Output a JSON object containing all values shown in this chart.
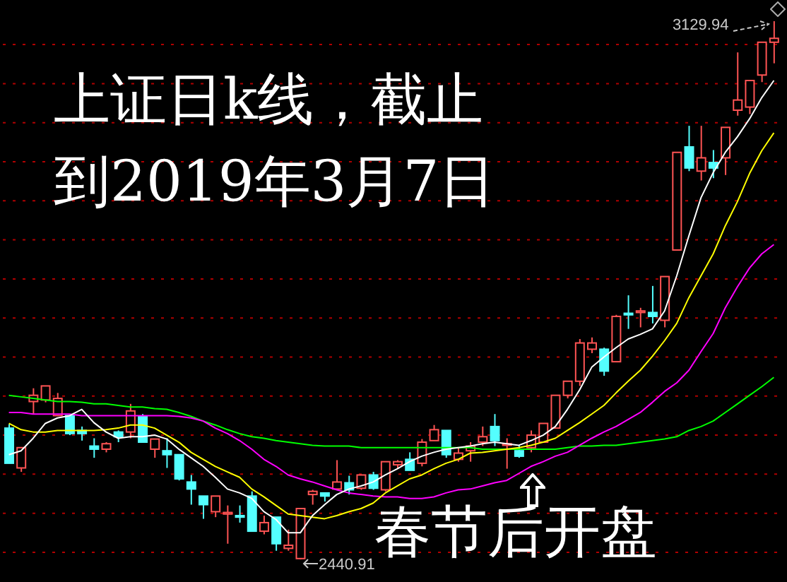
{
  "chart_data": {
    "type": "candlestick",
    "title": "上证日k线，截止到2019年3月7日",
    "annotations": [
      "3129.94",
      "2440.91",
      "春节后开盘"
    ],
    "categories": [
      null,
      null,
      null,
      null,
      null,
      null,
      null,
      null,
      null,
      null,
      null,
      null,
      null,
      null,
      null,
      null,
      null,
      null,
      null,
      null,
      null,
      null,
      null,
      null,
      null,
      null,
      null,
      null,
      null,
      null,
      null,
      null,
      null,
      null,
      null,
      null,
      null,
      null,
      null,
      null,
      null,
      null,
      null,
      null,
      null,
      null,
      null,
      null,
      null,
      null,
      null,
      null,
      null,
      null,
      null,
      null,
      null,
      null,
      null,
      null,
      null,
      null,
      null,
      null
    ],
    "ohlc": [
      [
        2609,
        2614,
        2564,
        2564
      ],
      [
        2558,
        2584,
        2553,
        2584
      ],
      [
        2643,
        2660,
        2627,
        2651
      ],
      [
        2645,
        2663,
        2642,
        2663
      ],
      [
        2625,
        2654,
        2625,
        2647
      ],
      [
        2625,
        2625,
        2600,
        2602
      ],
      [
        2606,
        2611,
        2593,
        2602
      ],
      [
        2586,
        2596,
        2571,
        2582
      ],
      [
        2582,
        2591,
        2578,
        2589
      ],
      [
        2604,
        2606,
        2591,
        2598
      ],
      [
        2604,
        2640,
        2596,
        2631
      ],
      [
        2624,
        2627,
        2591,
        2591
      ],
      [
        2582,
        2595,
        2571,
        2595
      ],
      [
        2580,
        2596,
        2558,
        2575
      ],
      [
        2575,
        2575,
        2542,
        2544
      ],
      [
        2540,
        2549,
        2511,
        2531
      ],
      [
        2522,
        2522,
        2493,
        2511
      ],
      [
        2502,
        2522,
        2495,
        2522
      ],
      [
        2499,
        2510,
        2461,
        2501
      ],
      [
        2497,
        2510,
        2488,
        2495
      ],
      [
        2522,
        2528,
        2477,
        2477
      ],
      [
        2477,
        2497,
        2473,
        2488
      ],
      [
        2495,
        2495,
        2452,
        2461
      ],
      [
        2455,
        2479,
        2452,
        2459
      ],
      [
        2442,
        2506,
        2440.91,
        2506
      ],
      [
        2524,
        2530,
        2511,
        2528
      ],
      [
        2526,
        2526,
        2515,
        2522
      ],
      [
        2531,
        2568,
        2530,
        2540
      ],
      [
        2539,
        2548,
        2524,
        2530
      ],
      [
        2532,
        2549,
        2530,
        2549
      ],
      [
        2549,
        2553,
        2530,
        2532
      ],
      [
        2530,
        2566,
        2528,
        2566
      ],
      [
        2562,
        2568,
        2557,
        2566
      ],
      [
        2569,
        2578,
        2555,
        2555
      ],
      [
        2564,
        2595,
        2560,
        2591
      ],
      [
        2593,
        2613,
        2593,
        2607
      ],
      [
        2606,
        2606,
        2571,
        2575
      ],
      [
        2569,
        2584,
        2566,
        2577
      ],
      [
        2580,
        2591,
        2566,
        2586
      ],
      [
        2591,
        2611,
        2586,
        2598
      ],
      [
        2611,
        2627,
        2586,
        2593
      ],
      [
        2587,
        2596,
        2557,
        2589
      ],
      [
        2580,
        2587,
        2571,
        2573
      ],
      [
        2584,
        2606,
        2578,
        2600
      ],
      [
        2591,
        2615,
        2591,
        2615
      ],
      [
        2609,
        2651,
        2609,
        2651
      ],
      [
        2651,
        2669,
        2647,
        2669
      ],
      [
        2669,
        2723,
        2663,
        2718
      ],
      [
        2710,
        2725,
        2705,
        2718
      ],
      [
        2710,
        2712,
        2676,
        2682
      ],
      [
        2694,
        2754,
        2694,
        2752
      ],
      [
        2756,
        2779,
        2736,
        2754
      ],
      [
        2757,
        2763,
        2738,
        2759
      ],
      [
        2757,
        2791,
        2743,
        2752
      ],
      [
        2747,
        2803,
        2738,
        2803
      ],
      [
        2837,
        2962,
        2837,
        2962
      ],
      [
        2969,
        2996,
        2938,
        2942
      ],
      [
        2938,
        2996,
        2926,
        2955
      ],
      [
        2949,
        2965,
        2929,
        2942
      ],
      [
        2955,
        2994,
        2933,
        2994
      ],
      [
        3016,
        3090,
        3009,
        3029
      ],
      [
        3020,
        3054,
        3011,
        3054
      ],
      [
        3061,
        3103,
        3052,
        3103
      ],
      [
        3103,
        3129.94,
        3076,
        3108
      ]
    ],
    "colors": [
      "#54ffff",
      "#ff5454",
      "#ff5454",
      "#ff5454",
      "#ff5454",
      "#54ffff",
      "#54ffff",
      "#54ffff",
      "#ff5454",
      "#54ffff",
      "#ff5454",
      "#54ffff",
      "#ff5454",
      "#54ffff",
      "#54ffff",
      "#54ffff",
      "#54ffff",
      "#ff5454",
      "#ff5454",
      "#54ffff",
      "#54ffff",
      "#ff5454",
      "#54ffff",
      "#ff5454",
      "#ff5454",
      "#ff5454",
      "#54ffff",
      "#ff5454",
      "#54ffff",
      "#ff5454",
      "#54ffff",
      "#ff5454",
      "#ff5454",
      "#54ffff",
      "#ff5454",
      "#ff5454",
      "#54ffff",
      "#ff5454",
      "#ff5454",
      "#ff5454",
      "#54ffff",
      "#ff5454",
      "#54ffff",
      "#ff5454",
      "#ff5454",
      "#ff5454",
      "#ff5454",
      "#ff5454",
      "#ff5454",
      "#54ffff",
      "#ff5454",
      "#54ffff",
      "#ff5454",
      "#54ffff",
      "#ff5454",
      "#ff5454",
      "#54ffff",
      "#ff5454",
      "#54ffff",
      "#ff5454",
      "#ff5454",
      "#ff5454",
      "#ff5454",
      "#ff5454"
    ],
    "series": [
      {
        "type": "line",
        "color": "#00ff00",
        "values": [
          2651,
          2649,
          2647,
          2645,
          2643,
          2643,
          2642,
          2640,
          2640,
          2638,
          2636,
          2636,
          2634,
          2633,
          2629,
          2624,
          2618,
          2613,
          2607,
          2602,
          2598,
          2596,
          2593,
          2591,
          2589,
          2587,
          2586,
          2586,
          2586,
          2584,
          2584,
          2584,
          2584,
          2584,
          2584,
          2584,
          2584,
          2584,
          2584,
          2582,
          2582,
          2582,
          2582,
          2582,
          2582,
          2582,
          2584,
          2586,
          2586,
          2587,
          2587,
          2589,
          2591,
          2593,
          2595,
          2598,
          2606,
          2611,
          2618,
          2629,
          2640,
          2651,
          2662,
          2674
        ]
      },
      {
        "type": "line",
        "color": "#ff00ff",
        "values": [
          2629,
          2629,
          2627,
          2627,
          2627,
          2627,
          2625,
          2625,
          2625,
          2625,
          2625,
          2625,
          2625,
          2625,
          2624,
          2622,
          2618,
          2609,
          2602,
          2593,
          2582,
          2569,
          2560,
          2549,
          2544,
          2540,
          2535,
          2530,
          2526,
          2524,
          2522,
          2521,
          2521,
          2519,
          2519,
          2521,
          2526,
          2530,
          2531,
          2535,
          2539,
          2542,
          2551,
          2560,
          2566,
          2573,
          2578,
          2587,
          2596,
          2604,
          2611,
          2620,
          2629,
          2642,
          2656,
          2667,
          2683,
          2707,
          2730,
          2763,
          2790,
          2814,
          2832,
          2844
        ]
      },
      {
        "type": "line",
        "color": "#ffff00",
        "values": [
          2615,
          2607,
          2604,
          2604,
          2606,
          2606,
          2606,
          2606,
          2607,
          2609,
          2613,
          2613,
          2609,
          2600,
          2591,
          2578,
          2569,
          2560,
          2553,
          2546,
          2531,
          2521,
          2510,
          2499,
          2497,
          2495,
          2493,
          2497,
          2502,
          2506,
          2513,
          2526,
          2535,
          2544,
          2549,
          2557,
          2564,
          2569,
          2577,
          2578,
          2580,
          2582,
          2584,
          2587,
          2591,
          2596,
          2606,
          2616,
          2627,
          2638,
          2654,
          2669,
          2683,
          2701,
          2721,
          2743,
          2776,
          2804,
          2832,
          2868,
          2899,
          2935,
          2964,
          2987
        ]
      },
      {
        "type": "line",
        "color": "#ffffff",
        "values": [
          2575,
          2580,
          2596,
          2615,
          2622,
          2625,
          2633,
          2616,
          2604,
          2596,
          2598,
          2598,
          2600,
          2595,
          2582,
          2571,
          2560,
          2546,
          2531,
          2526,
          2519,
          2502,
          2492,
          2475,
          2475,
          2497,
          2511,
          2524,
          2531,
          2535,
          2540,
          2549,
          2557,
          2566,
          2573,
          2578,
          2582,
          2584,
          2586,
          2589,
          2591,
          2589,
          2587,
          2593,
          2600,
          2611,
          2633,
          2658,
          2687,
          2700,
          2712,
          2723,
          2729,
          2736,
          2759,
          2804,
          2855,
          2904,
          2936,
          2962,
          2982,
          3005,
          3032,
          3054
        ]
      }
    ],
    "yticks": [
      {
        "value": 2450,
        "label": null
      },
      {
        "value": 2500,
        "label": null
      },
      {
        "value": 2550,
        "label": null
      },
      {
        "value": 2600,
        "label": null
      },
      {
        "value": 2650,
        "label": null
      },
      {
        "value": 2700,
        "label": null
      },
      {
        "value": 2750,
        "label": null
      },
      {
        "value": 2800,
        "label": null
      },
      {
        "value": 2850,
        "label": null
      },
      {
        "value": 2900,
        "label": null
      },
      {
        "value": 2950,
        "label": null
      },
      {
        "value": 3000,
        "label": null
      },
      {
        "value": 3050,
        "label": null
      },
      {
        "value": 3100,
        "label": null
      }
    ],
    "grid": "y"
  }
}
